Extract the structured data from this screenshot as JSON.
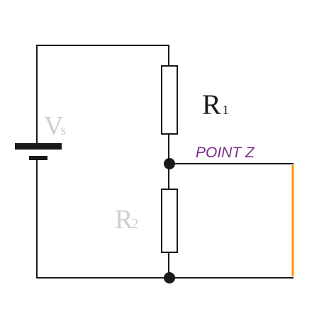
{
  "labels": {
    "v_main": "V",
    "v_sub": "s",
    "r1_main": "R",
    "r1_sub": "1",
    "r2_main": "R",
    "r2_sub": "2",
    "point_z": "POINT Z"
  },
  "colors": {
    "wire": "#1a1a1a",
    "resistor_fill": "#ffffff",
    "node": "#1a1a1a",
    "point_z_text": "#7b2b8a",
    "output_wire": "#ff9900",
    "faint_label": "#cfcfcf",
    "background": "#ffffff"
  }
}
